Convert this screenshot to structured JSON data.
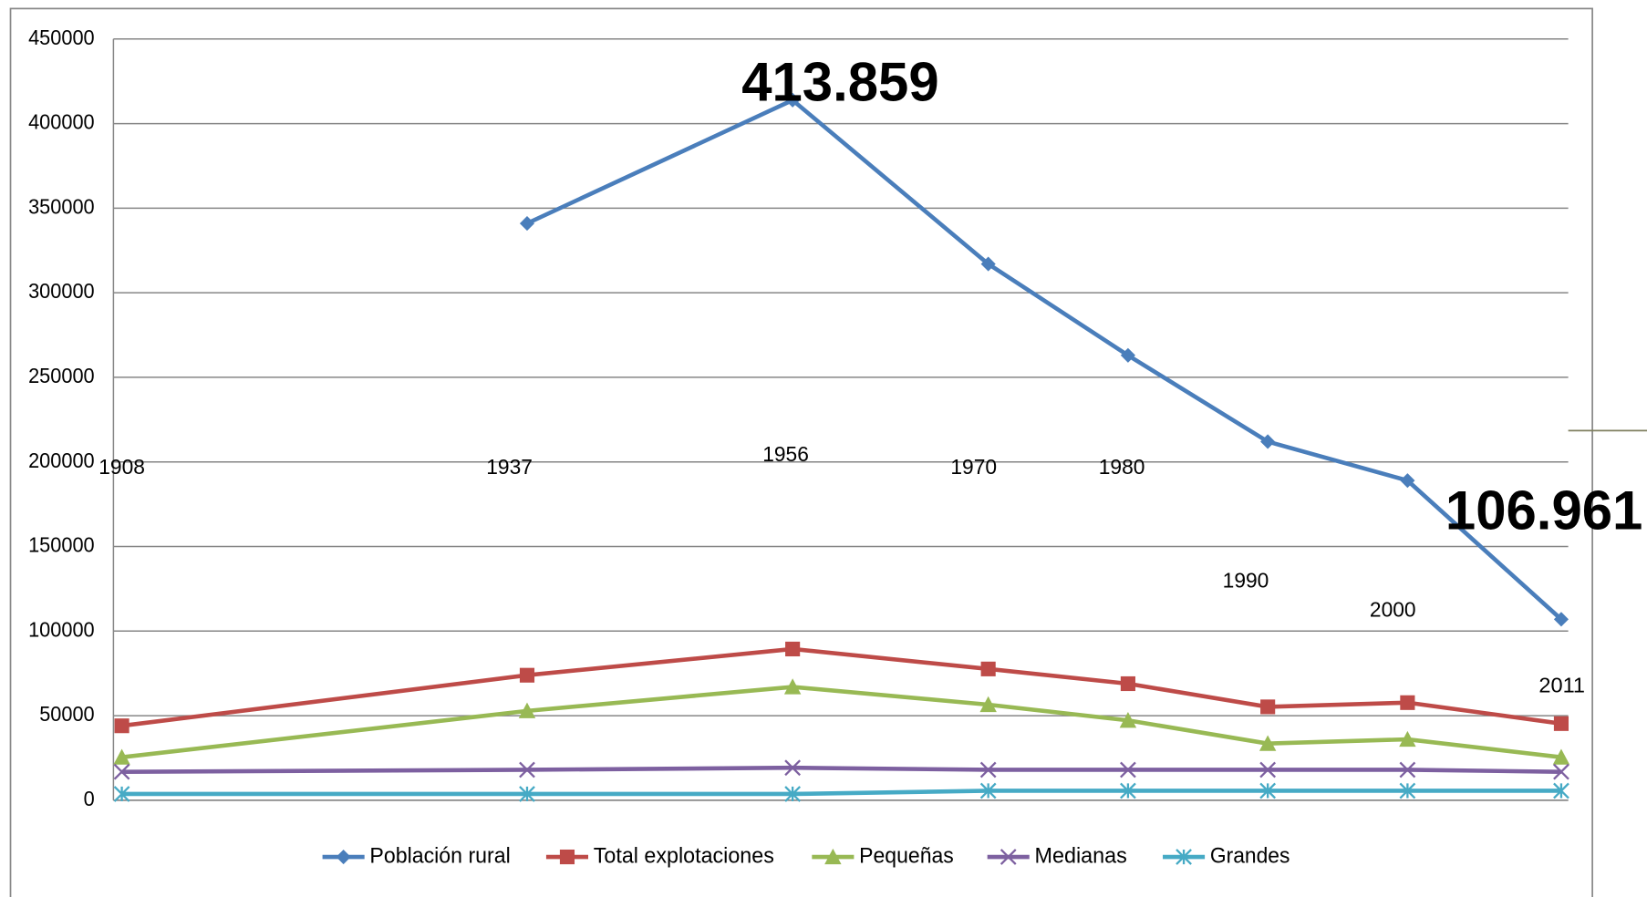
{
  "chart_data": {
    "type": "line",
    "x": [
      1908,
      1937,
      1956,
      1970,
      1980,
      1990,
      2000,
      2011
    ],
    "xlim": [
      1907.4,
      2011.5
    ],
    "ylim": [
      0,
      450000
    ],
    "yticks": [
      0,
      50000,
      100000,
      150000,
      200000,
      250000,
      300000,
      350000,
      400000,
      450000
    ],
    "grid": true,
    "legend": "bottom",
    "series": [
      {
        "name": "Población rural",
        "color": "#4a7ebb",
        "marker": "diamond",
        "values": [
          null,
          341000,
          413859,
          317000,
          263000,
          212000,
          189000,
          106961
        ],
        "value_labels": [
          null,
          null,
          "413.859",
          null,
          null,
          null,
          null,
          "106.961"
        ]
      },
      {
        "name": "Total explotaciones",
        "color": "#be4b48",
        "marker": "square",
        "values": [
          44000,
          73900,
          89400,
          77600,
          68900,
          55200,
          57700,
          45300
        ]
      },
      {
        "name": "Pequeñas",
        "color": "#98b954",
        "marker": "triangle",
        "values": [
          25400,
          52800,
          67000,
          56500,
          47200,
          33500,
          36000,
          25400
        ]
      },
      {
        "name": "Medianas",
        "color": "#7d60a0",
        "marker": "x",
        "values": [
          16800,
          18000,
          19200,
          18000,
          18000,
          18000,
          18000,
          16800
        ]
      },
      {
        "name": "Grandes",
        "color": "#46aac5",
        "marker": "asterisk",
        "values": [
          3700,
          3700,
          3700,
          5600,
          5600,
          5600,
          5600,
          5600
        ]
      }
    ]
  }
}
